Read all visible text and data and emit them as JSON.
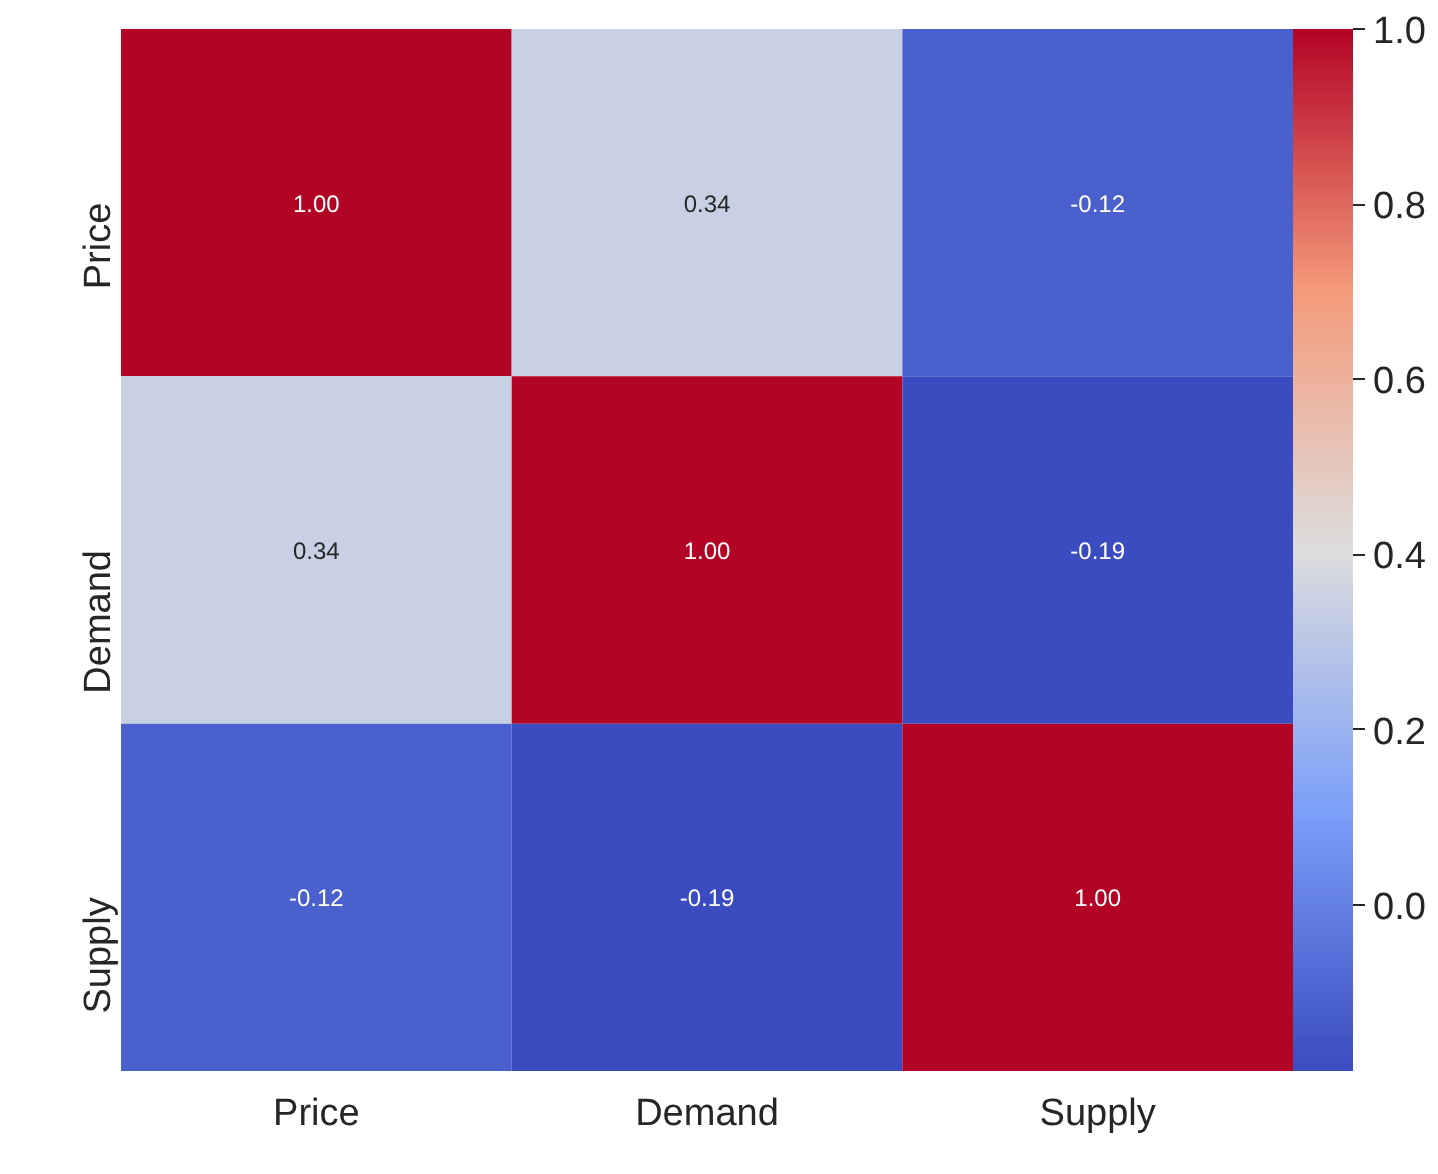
{
  "chart_data": {
    "type": "heatmap",
    "categories": [
      "Price",
      "Demand",
      "Supply"
    ],
    "y_categories": [
      "Price",
      "Demand",
      "Supply"
    ],
    "cells": [
      [
        1.0,
        0.34,
        -0.12
      ],
      [
        0.34,
        1.0,
        -0.19
      ],
      [
        -0.12,
        -0.19,
        1.0
      ]
    ],
    "cell_labels": [
      [
        "1.00",
        "0.34",
        "-0.12"
      ],
      [
        "0.34",
        "1.00",
        "-0.19"
      ],
      [
        "-0.12",
        "-0.19",
        "1.00"
      ]
    ],
    "clim": [
      -0.19,
      1.0
    ],
    "cticks": [
      {
        "value": 0.0,
        "label": "0.0"
      },
      {
        "value": 0.2,
        "label": "0.2"
      },
      {
        "value": 0.4,
        "label": "0.4"
      },
      {
        "value": 0.6,
        "label": "0.6"
      },
      {
        "value": 0.8,
        "label": "0.8"
      },
      {
        "value": 1.0,
        "label": "1.0"
      }
    ]
  }
}
